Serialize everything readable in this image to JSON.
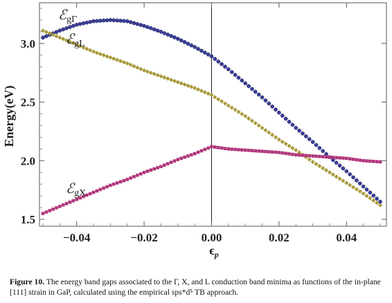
{
  "caption": {
    "figure_number": "Figure 10.",
    "text": "The energy band gaps associated to the Γ, X, and L conduction band minima as functions of the in-plane [111] strain in GaP, calculated using the empirical sps*d⁵ TB approach."
  },
  "chart_data": {
    "type": "scatter",
    "xlabel": "ϵp",
    "ylabel": "Energy(eV)",
    "xlim": [
      -0.05,
      0.05
    ],
    "ylim": [
      1.5,
      3.3
    ],
    "x_ticks": [
      -0.04,
      -0.02,
      0.0,
      0.02,
      0.04
    ],
    "x_tick_labels": [
      "−0.04",
      "−0.02",
      "0.00",
      "0.02",
      "0.04"
    ],
    "y_ticks": [
      1.5,
      2.0,
      2.5,
      3.0
    ],
    "y_tick_labels": [
      "1.5",
      "2.0",
      "2.5",
      "3.0"
    ],
    "reference_line_x": 0.0,
    "series": [
      {
        "name": "ℰgΓ",
        "label_main": "ℰ",
        "label_sub": "gΓ",
        "color": "#3a3f9a",
        "marker": "circle",
        "x": [
          -0.05,
          -0.045,
          -0.04,
          -0.035,
          -0.03,
          -0.025,
          -0.02,
          -0.015,
          -0.01,
          -0.005,
          0.0,
          0.005,
          0.01,
          0.015,
          0.02,
          0.025,
          0.03,
          0.035,
          0.04,
          0.045,
          0.05
        ],
        "values": [
          3.05,
          3.11,
          3.16,
          3.19,
          3.2,
          3.19,
          3.15,
          3.1,
          3.04,
          2.97,
          2.89,
          2.78,
          2.66,
          2.54,
          2.41,
          2.28,
          2.16,
          2.03,
          1.91,
          1.78,
          1.65
        ]
      },
      {
        "name": "ℰgL",
        "label_main": "ℰ",
        "label_sub": "gL",
        "color": "#a89a3c",
        "marker": "diamond",
        "x": [
          -0.05,
          -0.045,
          -0.04,
          -0.035,
          -0.03,
          -0.025,
          -0.02,
          -0.015,
          -0.01,
          -0.005,
          0.0,
          0.005,
          0.01,
          0.015,
          0.02,
          0.025,
          0.03,
          0.035,
          0.04,
          0.045,
          0.05
        ],
        "values": [
          3.11,
          3.05,
          2.99,
          2.93,
          2.88,
          2.83,
          2.77,
          2.72,
          2.67,
          2.62,
          2.56,
          2.47,
          2.38,
          2.28,
          2.18,
          2.09,
          1.99,
          1.9,
          1.81,
          1.72,
          1.62
        ]
      },
      {
        "name": "ℰgX",
        "label_main": "ℰ",
        "label_sub": "gX",
        "color": "#b0357a",
        "marker": "square",
        "x": [
          -0.05,
          -0.045,
          -0.04,
          -0.035,
          -0.03,
          -0.025,
          -0.02,
          -0.015,
          -0.01,
          -0.005,
          0.0,
          0.005,
          0.01,
          0.015,
          0.02,
          0.025,
          0.03,
          0.035,
          0.04,
          0.045,
          0.05
        ],
        "values": [
          1.55,
          1.61,
          1.67,
          1.73,
          1.79,
          1.84,
          1.9,
          1.95,
          2.01,
          2.06,
          2.12,
          2.1,
          2.09,
          2.08,
          2.07,
          2.05,
          2.04,
          2.03,
          2.02,
          2.0,
          1.99
        ]
      }
    ]
  }
}
